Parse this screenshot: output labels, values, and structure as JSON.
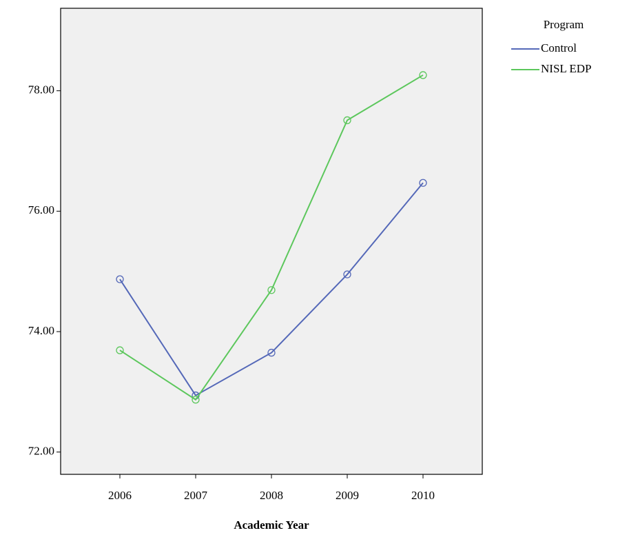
{
  "chart_data": {
    "type": "line",
    "x_label": "Academic Year",
    "legend_title": "Program",
    "legend": "outside-top-right",
    "categories": [
      "2006",
      "2007",
      "2008",
      "2009",
      "2010"
    ],
    "series": [
      {
        "name": "Control",
        "color": "#5468b8",
        "values": [
          74.87,
          72.94,
          73.65,
          74.95,
          76.47
        ]
      },
      {
        "name": "NISL EDP",
        "color": "#5cc75c",
        "values": [
          73.69,
          72.87,
          74.69,
          77.51,
          78.26
        ]
      }
    ],
    "ylim": [
      71.63,
      79.37
    ],
    "yticks": [
      {
        "value": 72,
        "label": "72.00"
      },
      {
        "value": 74,
        "label": "74.00"
      },
      {
        "value": 76,
        "label": "76.00"
      },
      {
        "value": 78,
        "label": "78.00"
      }
    ],
    "grid": false
  }
}
